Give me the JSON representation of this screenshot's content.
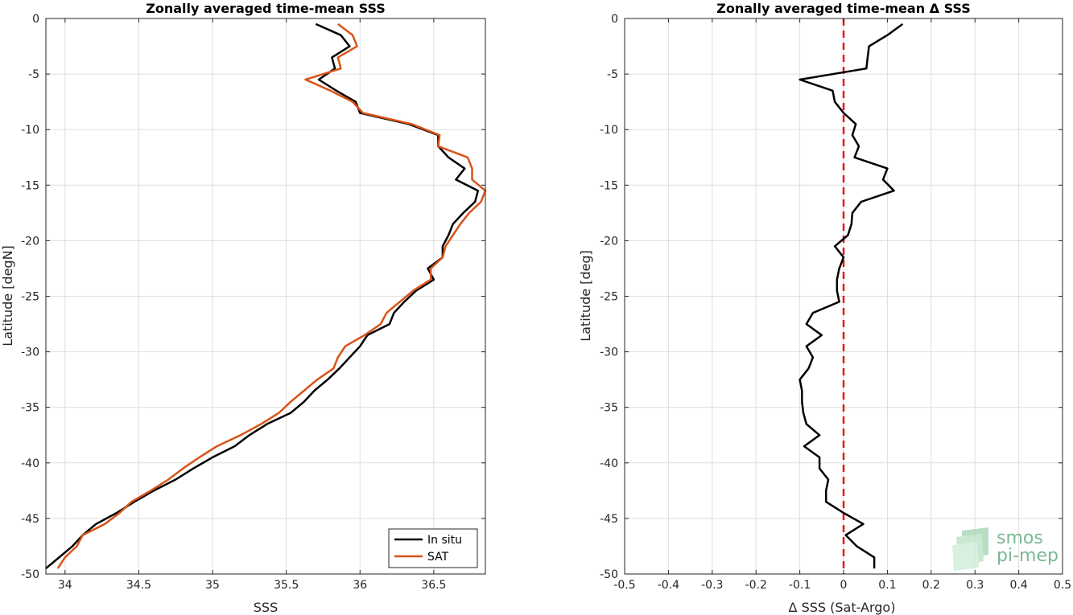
{
  "chart_data": [
    {
      "type": "line",
      "title": "Zonally averaged time-mean SSS",
      "xlabel": "SSS",
      "ylabel": "Latitude [degN]",
      "xlim": [
        33.87,
        36.85
      ],
      "ylim": [
        -50,
        0
      ],
      "xticks": [
        34,
        34.5,
        35,
        35.5,
        36,
        36.5
      ],
      "xtick_labels": [
        "34",
        "34.5",
        "35",
        "35.5",
        "36",
        "36.5"
      ],
      "yticks": [
        0,
        -5,
        -10,
        -15,
        -20,
        -25,
        -30,
        -35,
        -40,
        -45,
        -50
      ],
      "ytick_labels": [
        "0",
        "-5",
        "-10",
        "-15",
        "-20",
        "-25",
        "-30",
        "-35",
        "-40",
        "-45",
        "-50"
      ],
      "grid": true,
      "legend_position": "bottom-right",
      "series": [
        {
          "name": "In situ",
          "color": "#000000",
          "points": [
            [
              35.7,
              -0.5
            ],
            [
              35.87,
              -1.5
            ],
            [
              35.93,
              -2.5
            ],
            [
              35.81,
              -3.5
            ],
            [
              35.83,
              -4.5
            ],
            [
              35.72,
              -5.5
            ],
            [
              35.84,
              -6.5
            ],
            [
              35.97,
              -7.5
            ],
            [
              36.0,
              -8.5
            ],
            [
              36.33,
              -9.5
            ],
            [
              36.53,
              -10.5
            ],
            [
              36.53,
              -11.5
            ],
            [
              36.6,
              -12.5
            ],
            [
              36.71,
              -13.5
            ],
            [
              36.65,
              -14.5
            ],
            [
              36.8,
              -15.5
            ],
            [
              36.78,
              -16.5
            ],
            [
              36.7,
              -17.5
            ],
            [
              36.63,
              -18.5
            ],
            [
              36.6,
              -19.5
            ],
            [
              36.56,
              -20.5
            ],
            [
              36.56,
              -21.5
            ],
            [
              36.46,
              -22.5
            ],
            [
              36.5,
              -23.5
            ],
            [
              36.38,
              -24.5
            ],
            [
              36.3,
              -25.5
            ],
            [
              36.23,
              -26.5
            ],
            [
              36.2,
              -27.5
            ],
            [
              36.05,
              -28.5
            ],
            [
              36.0,
              -29.5
            ],
            [
              35.93,
              -30.5
            ],
            [
              35.86,
              -31.5
            ],
            [
              35.78,
              -32.5
            ],
            [
              35.69,
              -33.5
            ],
            [
              35.62,
              -34.5
            ],
            [
              35.53,
              -35.5
            ],
            [
              35.37,
              -36.5
            ],
            [
              35.25,
              -37.5
            ],
            [
              35.15,
              -38.5
            ],
            [
              35.0,
              -39.5
            ],
            [
              34.87,
              -40.5
            ],
            [
              34.75,
              -41.5
            ],
            [
              34.6,
              -42.5
            ],
            [
              34.47,
              -43.5
            ],
            [
              34.35,
              -44.5
            ],
            [
              34.21,
              -45.5
            ],
            [
              34.12,
              -46.5
            ],
            [
              34.05,
              -47.5
            ],
            [
              33.96,
              -48.5
            ],
            [
              33.87,
              -49.5
            ]
          ]
        },
        {
          "name": "SAT",
          "color": "#d95319",
          "points": [
            [
              35.85,
              -0.5
            ],
            [
              35.95,
              -1.5
            ],
            [
              35.98,
              -2.5
            ],
            [
              35.85,
              -3.5
            ],
            [
              35.87,
              -4.5
            ],
            [
              35.63,
              -5.5
            ],
            [
              35.8,
              -6.5
            ],
            [
              35.95,
              -7.5
            ],
            [
              36.02,
              -8.5
            ],
            [
              36.35,
              -9.5
            ],
            [
              36.54,
              -10.5
            ],
            [
              36.53,
              -11.5
            ],
            [
              36.73,
              -12.5
            ],
            [
              36.76,
              -13.5
            ],
            [
              36.76,
              -14.5
            ],
            [
              36.85,
              -15.5
            ],
            [
              36.82,
              -16.5
            ],
            [
              36.74,
              -17.5
            ],
            [
              36.68,
              -18.5
            ],
            [
              36.63,
              -19.5
            ],
            [
              36.58,
              -20.5
            ],
            [
              36.56,
              -21.5
            ],
            [
              36.48,
              -22.5
            ],
            [
              36.48,
              -23.5
            ],
            [
              36.36,
              -24.5
            ],
            [
              36.27,
              -25.5
            ],
            [
              36.18,
              -26.5
            ],
            [
              36.14,
              -27.5
            ],
            [
              36.03,
              -28.5
            ],
            [
              35.9,
              -29.5
            ],
            [
              35.85,
              -30.5
            ],
            [
              35.82,
              -31.5
            ],
            [
              35.71,
              -32.5
            ],
            [
              35.62,
              -33.5
            ],
            [
              35.53,
              -34.5
            ],
            [
              35.45,
              -35.5
            ],
            [
              35.33,
              -36.5
            ],
            [
              35.19,
              -37.5
            ],
            [
              35.03,
              -38.5
            ],
            [
              34.91,
              -39.5
            ],
            [
              34.8,
              -40.5
            ],
            [
              34.7,
              -41.5
            ],
            [
              34.58,
              -42.5
            ],
            [
              34.45,
              -43.5
            ],
            [
              34.37,
              -44.5
            ],
            [
              34.27,
              -45.5
            ],
            [
              34.12,
              -46.5
            ],
            [
              34.08,
              -47.5
            ],
            [
              34.0,
              -48.5
            ],
            [
              33.95,
              -49.5
            ]
          ]
        }
      ]
    },
    {
      "type": "line",
      "title": "Zonally averaged time-mean Δ SSS",
      "xlabel": "Δ SSS (Sat-Argo)",
      "ylabel": "Latitude [deg]",
      "xlim": [
        -0.5,
        0.5
      ],
      "ylim": [
        -50,
        0
      ],
      "xticks": [
        -0.5,
        -0.4,
        -0.3,
        -0.2,
        -0.1,
        0,
        0.1,
        0.2,
        0.3,
        0.4,
        0.5
      ],
      "xtick_labels": [
        "-0.5",
        "-0.4",
        "-0.3",
        "-0.2",
        "-0.1",
        "0",
        "0.1",
        "0.2",
        "0.3",
        "0.4",
        "0.5"
      ],
      "yticks": [
        0,
        -5,
        -10,
        -15,
        -20,
        -25,
        -30,
        -35,
        -40,
        -45,
        -50
      ],
      "ytick_labels": [
        "0",
        "-5",
        "-10",
        "-15",
        "-20",
        "-25",
        "-30",
        "-35",
        "-40",
        "-45",
        "-50"
      ],
      "grid": true,
      "reference_line": {
        "x": 0,
        "color": "#e31a1c",
        "style": "dashed"
      },
      "series": [
        {
          "color": "#000000",
          "points": [
            [
              0.135,
              -0.5
            ],
            [
              0.1,
              -1.5
            ],
            [
              0.058,
              -2.5
            ],
            [
              0.055,
              -3.5
            ],
            [
              0.052,
              -4.5
            ],
            [
              -0.1,
              -5.5
            ],
            [
              -0.025,
              -6.5
            ],
            [
              -0.02,
              -7.5
            ],
            [
              0.0,
              -8.5
            ],
            [
              0.028,
              -9.5
            ],
            [
              0.02,
              -10.5
            ],
            [
              0.035,
              -11.5
            ],
            [
              0.025,
              -12.5
            ],
            [
              0.1,
              -13.5
            ],
            [
              0.09,
              -14.5
            ],
            [
              0.115,
              -15.5
            ],
            [
              0.04,
              -16.5
            ],
            [
              0.02,
              -17.5
            ],
            [
              0.018,
              -18.5
            ],
            [
              0.01,
              -19.5
            ],
            [
              -0.02,
              -20.5
            ],
            [
              0.0,
              -21.5
            ],
            [
              -0.01,
              -22.5
            ],
            [
              -0.015,
              -23.5
            ],
            [
              -0.015,
              -24.5
            ],
            [
              -0.01,
              -25.5
            ],
            [
              -0.07,
              -26.5
            ],
            [
              -0.085,
              -27.5
            ],
            [
              -0.05,
              -28.5
            ],
            [
              -0.085,
              -29.5
            ],
            [
              -0.07,
              -30.5
            ],
            [
              -0.08,
              -31.5
            ],
            [
              -0.1,
              -32.5
            ],
            [
              -0.095,
              -33.5
            ],
            [
              -0.095,
              -34.5
            ],
            [
              -0.092,
              -35.5
            ],
            [
              -0.085,
              -36.5
            ],
            [
              -0.055,
              -37.5
            ],
            [
              -0.09,
              -38.5
            ],
            [
              -0.055,
              -39.5
            ],
            [
              -0.055,
              -40.5
            ],
            [
              -0.035,
              -41.5
            ],
            [
              -0.04,
              -42.5
            ],
            [
              -0.04,
              -43.5
            ],
            [
              0.0,
              -44.5
            ],
            [
              0.045,
              -45.5
            ],
            [
              0.005,
              -46.5
            ],
            [
              0.03,
              -47.5
            ],
            [
              0.07,
              -48.5
            ],
            [
              0.07,
              -49.5
            ]
          ]
        }
      ]
    }
  ],
  "legend": {
    "items": [
      {
        "label": "In situ",
        "color": "#000000"
      },
      {
        "label": "SAT",
        "color": "#d95319"
      }
    ]
  },
  "logo": {
    "line1": "smos",
    "line2": "pi-mep",
    "color": "#7ab893"
  }
}
